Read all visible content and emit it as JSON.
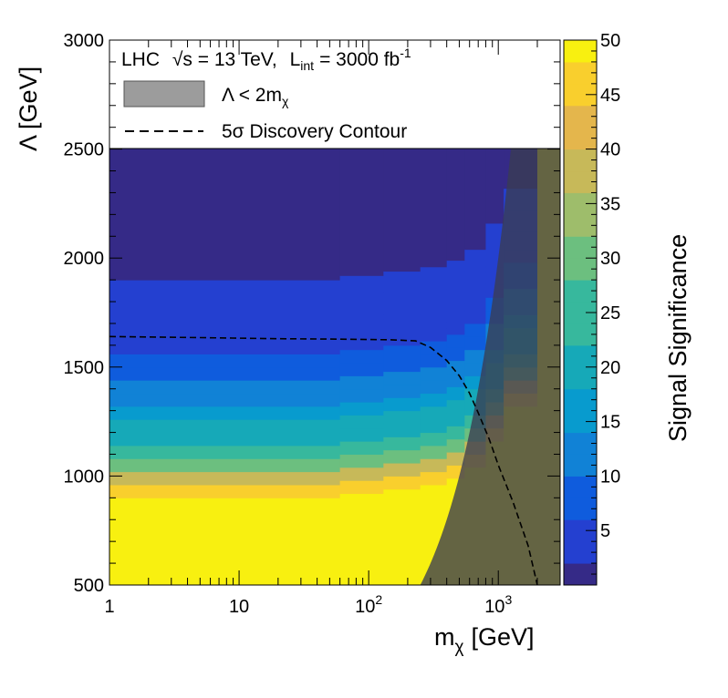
{
  "chart_data": {
    "type": "heatmap",
    "title": "",
    "experiment": "LHC",
    "sqrt_s_prefix": "√s = 13 TeV,",
    "lumi_prefix": "L",
    "lumi_sub": "int",
    "lumi_value": "= 3000 fb",
    "lumi_unit_exp": "-1",
    "xlabel_main": "m",
    "xlabel_sub": "χ",
    "xlabel_unit": "[GeV]",
    "ylabel": "Λ [GeV]",
    "zlabel": "Signal Significance",
    "x_scale": "log",
    "xlim": [
      1,
      3000
    ],
    "ylim": [
      500,
      3000
    ],
    "zlim": [
      0,
      50
    ],
    "x_ticks": [
      {
        "value": 1,
        "label": "1",
        "exp": ""
      },
      {
        "value": 10,
        "label": "10",
        "exp": ""
      },
      {
        "value": 100,
        "label": "10",
        "exp": "2"
      },
      {
        "value": 1000,
        "label": "10",
        "exp": "3"
      }
    ],
    "y_ticks": [
      "500",
      "1000",
      "1500",
      "2000",
      "2500",
      "3000"
    ],
    "z_ticks": [
      "5",
      "10",
      "15",
      "20",
      "25",
      "30",
      "35",
      "40",
      "45",
      "50"
    ],
    "legend": {
      "position": "top",
      "entries": [
        {
          "kind": "band",
          "label_prefix": "Λ < 2m",
          "label_sub": "χ"
        },
        {
          "kind": "dashed",
          "label": "5σ Discovery Contour"
        }
      ]
    },
    "excluded_region": "Λ < 2m_χ",
    "significance_rows": [
      {
        "y_min": 500,
        "y_max": 900,
        "z": 50
      },
      {
        "y_min": 900,
        "y_max": 960,
        "z": 44
      },
      {
        "y_min": 960,
        "y_max": 1020,
        "z": 37
      },
      {
        "y_min": 1020,
        "y_max": 1080,
        "z": 30
      },
      {
        "y_min": 1080,
        "y_max": 1140,
        "z": 26
      },
      {
        "y_min": 1140,
        "y_max": 1200,
        "z": 22
      },
      {
        "y_min": 1200,
        "y_max": 1260,
        "z": 19
      },
      {
        "y_min": 1260,
        "y_max": 1320,
        "z": 16
      },
      {
        "y_min": 1320,
        "y_max": 1380,
        "z": 13
      },
      {
        "y_min": 1380,
        "y_max": 1440,
        "z": 11
      },
      {
        "y_min": 1440,
        "y_max": 1500,
        "z": 9
      },
      {
        "y_min": 1500,
        "y_max": 1560,
        "z": 7
      },
      {
        "y_min": 1560,
        "y_max": 1620,
        "z": 6
      },
      {
        "y_min": 1620,
        "y_max": 1700,
        "z": 5
      },
      {
        "y_min": 1700,
        "y_max": 1800,
        "z": 4
      },
      {
        "y_min": 1800,
        "y_max": 1900,
        "z": 3
      },
      {
        "y_min": 1900,
        "y_max": 3000,
        "z": 1
      }
    ],
    "mass_shift": [
      {
        "x_min": 1,
        "x_max": 60,
        "dy": 0
      },
      {
        "x_min": 60,
        "x_max": 130,
        "dy": 20
      },
      {
        "x_min": 130,
        "x_max": 250,
        "dy": 40
      },
      {
        "x_min": 250,
        "x_max": 400,
        "dy": 60
      },
      {
        "x_min": 400,
        "x_max": 550,
        "dy": 90
      },
      {
        "x_min": 550,
        "x_max": 800,
        "dy": 140
      },
      {
        "x_min": 800,
        "x_max": 1100,
        "dy": 260
      },
      {
        "x_min": 1100,
        "x_max": 2000,
        "dy": 420
      },
      {
        "x_min": 2000,
        "x_max": 3000,
        "dy": 2000
      }
    ],
    "contour_5sigma": {
      "x": [
        1,
        5,
        20,
        60,
        150,
        230,
        300,
        400,
        500,
        600,
        700,
        850,
        1000,
        1300,
        1700,
        2000
      ],
      "y": [
        1640,
        1635,
        1630,
        1628,
        1625,
        1620,
        1590,
        1530,
        1460,
        1380,
        1290,
        1170,
        1050,
        880,
        680,
        500
      ]
    },
    "colors": {
      "frame": "#000000",
      "band_fill": "#3a3c52",
      "band_legend_fill": "#9c9c9c",
      "palette": [
        "#352a87",
        "#2440d0",
        "#0f5cdd",
        "#1182d6",
        "#089bce",
        "#16a9b8",
        "#37b89d",
        "#6cbf7f",
        "#9ebd6b",
        "#c7b959",
        "#e4b64c",
        "#f9cf2d",
        "#f8f010"
      ]
    }
  }
}
